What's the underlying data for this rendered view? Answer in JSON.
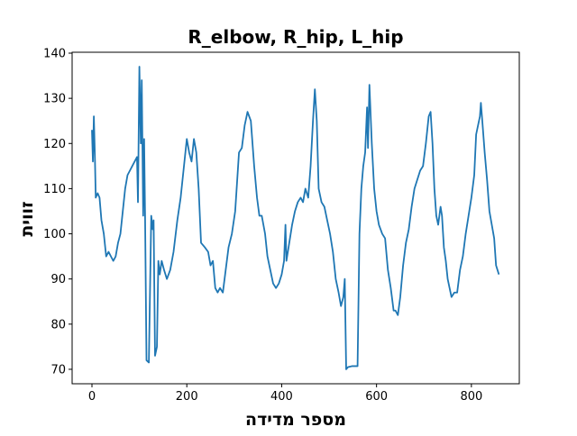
{
  "chart_data": {
    "type": "line",
    "title": "R_elbow, R_hip, L_hip",
    "x_label": "מספר מדידה",
    "y_label": "זווית",
    "x": [
      0,
      2,
      4,
      6,
      8,
      12,
      16,
      20,
      25,
      30,
      35,
      40,
      45,
      50,
      55,
      60,
      65,
      70,
      75,
      80,
      85,
      90,
      95,
      97,
      100,
      103,
      105,
      108,
      110,
      112,
      115,
      120,
      125,
      128,
      130,
      133,
      137,
      140,
      143,
      147,
      152,
      158,
      165,
      172,
      180,
      187,
      195,
      200,
      205,
      210,
      215,
      220,
      225,
      230,
      238,
      245,
      250,
      255,
      260,
      265,
      270,
      276,
      282,
      288,
      295,
      302,
      310,
      316,
      322,
      328,
      335,
      342,
      348,
      353,
      358,
      365,
      370,
      376,
      382,
      388,
      394,
      400,
      405,
      408,
      410,
      416,
      422,
      428,
      434,
      440,
      445,
      450,
      456,
      461,
      466,
      470,
      474,
      478,
      484,
      490,
      496,
      502,
      508,
      514,
      520,
      525,
      530,
      533,
      536,
      540,
      548,
      560,
      564,
      568,
      572,
      576,
      580,
      582,
      585,
      590,
      595,
      600,
      605,
      612,
      618,
      624,
      630,
      636,
      640,
      645,
      650,
      656,
      662,
      668,
      674,
      680,
      686,
      692,
      698,
      704,
      710,
      714,
      718,
      722,
      726,
      730,
      735,
      738,
      742,
      746,
      750,
      754,
      758,
      764,
      770,
      776,
      782,
      788,
      794,
      800,
      806,
      810,
      814,
      818,
      820,
      823,
      828,
      833,
      838,
      843,
      848,
      852,
      858
    ],
    "series": [
      {
        "color": "#1f77b4",
        "values": [
          123,
          116,
          126,
          118,
          108,
          109,
          108,
          103,
          100,
          95,
          96,
          95,
          94,
          95,
          98,
          100,
          105,
          110,
          113,
          114,
          115,
          116,
          117,
          107,
          137,
          120,
          134,
          104,
          121,
          104,
          72,
          71.5,
          104,
          101,
          103,
          73,
          75,
          94,
          91,
          94,
          92,
          90,
          92,
          96,
          103,
          108,
          116,
          121,
          118,
          116,
          121,
          118,
          110,
          98,
          97,
          96,
          93,
          94,
          88,
          87,
          88,
          87,
          92,
          97,
          100,
          105,
          118,
          119,
          124,
          127,
          125,
          115,
          108,
          104,
          104,
          100,
          95,
          92,
          89,
          88,
          89,
          91,
          94,
          102,
          94,
          98,
          102,
          105,
          107,
          108,
          107,
          110,
          108,
          115,
          125,
          132,
          125,
          110,
          107,
          106,
          103,
          100,
          96,
          90,
          87,
          84,
          86,
          90,
          70,
          70.5,
          70.7,
          70.7,
          100,
          110,
          115,
          118,
          128,
          119,
          133,
          120,
          110,
          105,
          102,
          100,
          99,
          92,
          88,
          83,
          83,
          82,
          86,
          93,
          98,
          101,
          106,
          110,
          112,
          114,
          115,
          120,
          126,
          127,
          120,
          110,
          104,
          102,
          106,
          104,
          97,
          94,
          90,
          88,
          86,
          87,
          87,
          92,
          95,
          100,
          104,
          108,
          113,
          122,
          124,
          126,
          129,
          125,
          118,
          112,
          105,
          102,
          99,
          93,
          91
        ]
      }
    ],
    "xlim": [
      -41.8,
      901
    ],
    "ylim": [
      66.8,
      140.2
    ],
    "xticks": [
      0,
      200,
      400,
      600,
      800
    ],
    "yticks": [
      70,
      80,
      90,
      100,
      110,
      120,
      130,
      140
    ]
  }
}
